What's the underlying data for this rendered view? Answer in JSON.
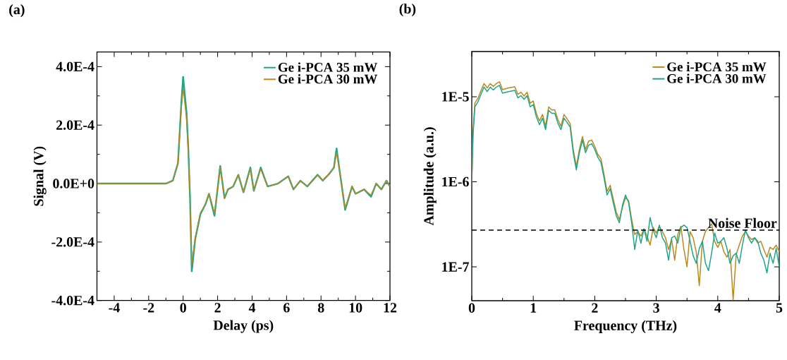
{
  "chart_data": [
    {
      "type": "line",
      "title": "(a)",
      "xlabel": "Delay (ps)",
      "ylabel": "Signal (V)",
      "xlim": [
        -5,
        12
      ],
      "ylim": [
        -0.0004,
        0.00045
      ],
      "xticks": [
        -4,
        -2,
        0,
        2,
        4,
        6,
        8,
        10,
        12
      ],
      "yticks": [
        {
          "value": -0.0004,
          "label": "-4.0E-4"
        },
        {
          "value": -0.0002,
          "label": "-2.0E-4"
        },
        {
          "value": 0,
          "label": "0.0E+0"
        },
        {
          "value": 0.0002,
          "label": "2.0E-4"
        },
        {
          "value": 0.0004,
          "label": "4.0E-4"
        }
      ],
      "legend": "top right",
      "grid": false,
      "line_style": "solid",
      "x": [
        -5,
        -4.5,
        -4,
        -3.5,
        -3,
        -2.5,
        -2,
        -1.5,
        -1,
        -0.6,
        -0.3,
        -0.1,
        0,
        0.2,
        0.3,
        0.4,
        0.5,
        0.7,
        1.0,
        1.3,
        1.5,
        1.82,
        2.15,
        2.4,
        2.6,
        2.9,
        3.2,
        3.5,
        3.9,
        4.1,
        4.5,
        4.9,
        5.5,
        6.1,
        6.4,
        6.8,
        7.2,
        7.5,
        7.8,
        8.1,
        8.5,
        8.75,
        8.9,
        9.1,
        9.4,
        9.8,
        10.0,
        10.5,
        10.9,
        11.2,
        11.5,
        11.8,
        12
      ],
      "series": [
        {
          "name": "Ge i-PCA 35 mW",
          "color": "#1fa58a",
          "values": [
            0,
            0,
            0,
            0,
            0,
            0,
            0,
            0,
            0,
            1e-05,
            7e-05,
            0.00028,
            0.000365,
            0.00024,
            0.00012,
            -5e-05,
            -0.0003,
            -0.00019,
            -0.000105,
            -7e-05,
            -3.5e-05,
            -0.00011,
            6e-05,
            -5e-05,
            -2e-05,
            -1e-05,
            3e-05,
            -3e-05,
            5.5e-05,
            -2.5e-05,
            5.5e-05,
            -1e-05,
            0,
            2.5e-05,
            -2e-05,
            1e-05,
            -1e-05,
            1e-05,
            3e-05,
            1e-05,
            3.5e-05,
            5.5e-05,
            0.00012,
            3.5e-05,
            -9e-05,
            -1e-05,
            -3.5e-05,
            -2e-05,
            -4.5e-05,
            0,
            -2e-05,
            1e-05,
            -1e-05
          ]
        },
        {
          "name": "Ge i-PCA 30 mW",
          "color": "#b8891c",
          "values": [
            0,
            0,
            0,
            0,
            0,
            0,
            0,
            0,
            0,
            1e-05,
            7e-05,
            0.00026,
            0.000325,
            0.00022,
            0.00011,
            -5e-05,
            -0.000275,
            -0.000185,
            -0.0001,
            -7e-05,
            -3.5e-05,
            -0.0001,
            5.5e-05,
            -5e-05,
            -2e-05,
            -1e-05,
            3e-05,
            -3e-05,
            5e-05,
            -2.5e-05,
            5e-05,
            -1e-05,
            0,
            2.5e-05,
            -2e-05,
            1e-05,
            -1e-05,
            1e-05,
            3e-05,
            1e-05,
            3.5e-05,
            5.5e-05,
            0.000105,
            3.5e-05,
            -8.5e-05,
            -1e-05,
            -3.5e-05,
            -2e-05,
            -4e-05,
            0,
            -2e-05,
            1e-05,
            -1e-05
          ]
        }
      ]
    },
    {
      "type": "line",
      "title": "(b)",
      "xlabel": "Frequency (THz)",
      "ylabel": "Amplitude (a.u.)",
      "log": "y",
      "xlim": [
        0,
        5
      ],
      "ylim": [
        4e-08,
        3.4e-05
      ],
      "xticks": [
        0,
        1,
        2,
        3,
        4,
        5
      ],
      "yticks": [
        {
          "value": 1e-07,
          "label": "1E-7"
        },
        {
          "value": 1e-06,
          "label": "1E-6"
        },
        {
          "value": 1e-05,
          "label": "1E-5"
        }
      ],
      "legend": "top right",
      "grid": false,
      "line_style": "solid",
      "ref_lines": [
        {
          "axis": "y",
          "value": 2.7e-07,
          "label": "Noise Floor",
          "color": "#000000",
          "line_style": "dashed"
        }
      ],
      "x": [
        0,
        0.02,
        0.05,
        0.1,
        0.15,
        0.2,
        0.25,
        0.3,
        0.35,
        0.4,
        0.45,
        0.5,
        0.6,
        0.7,
        0.75,
        0.8,
        0.85,
        0.9,
        0.95,
        1.0,
        1.05,
        1.1,
        1.15,
        1.2,
        1.25,
        1.3,
        1.35,
        1.4,
        1.45,
        1.5,
        1.55,
        1.6,
        1.65,
        1.7,
        1.75,
        1.8,
        1.85,
        1.9,
        1.95,
        2.0,
        2.05,
        2.1,
        2.15,
        2.2,
        2.25,
        2.3,
        2.35,
        2.4,
        2.45,
        2.5,
        2.55,
        2.6,
        2.65,
        2.7,
        2.75,
        2.8,
        2.85,
        2.9,
        2.95,
        3.0,
        3.05,
        3.1,
        3.15,
        3.2,
        3.25,
        3.3,
        3.35,
        3.4,
        3.45,
        3.5,
        3.55,
        3.6,
        3.65,
        3.7,
        3.75,
        3.8,
        3.85,
        3.9,
        3.95,
        4.0,
        4.05,
        4.1,
        4.15,
        4.2,
        4.25,
        4.3,
        4.35,
        4.4,
        4.45,
        4.5,
        4.55,
        4.6,
        4.65,
        4.7,
        4.75,
        4.8,
        4.85,
        4.9,
        4.95,
        5.0
      ],
      "series": [
        {
          "name": "Ge i-PCA 35 mW",
          "color": "#b8891c",
          "values": [
            1e-06,
            3.8e-06,
            8.4e-06,
            9.6e-06,
            1.18e-05,
            1.43e-05,
            1.27e-05,
            1.43e-05,
            1.32e-05,
            1.43e-05,
            1.5e-05,
            1.21e-05,
            1.27e-05,
            1.31e-05,
            1.07e-05,
            1.13e-05,
            1.02e-05,
            1.13e-05,
            8.4e-06,
            8.9e-06,
            6.4e-06,
            5.2e-06,
            6.2e-06,
            4.5e-06,
            7.6e-06,
            7e-06,
            7e-06,
            5.4e-06,
            4.5e-06,
            6.2e-06,
            5.5e-06,
            4.8e-06,
            2.4e-06,
            1.52e-06,
            2.4e-06,
            3.4e-06,
            2.4e-06,
            3e-06,
            3.1e-06,
            2.6e-06,
            2.1e-06,
            1.87e-06,
            1.23e-06,
            7.7e-07,
            9.1e-07,
            6.3e-07,
            4.4e-07,
            3.6e-07,
            5e-07,
            6.5e-07,
            6e-07,
            3.6e-07,
            2.4e-07,
            2.6e-07,
            2.3e-07,
            2.8e-07,
            2.3e-07,
            1.8e-07,
            2.9e-07,
            2.5e-07,
            3e-07,
            2.6e-07,
            2.2e-07,
            1.6e-07,
            2.1e-07,
            1.2e-07,
            2.4e-07,
            3e-07,
            1.6e-07,
            1e-07,
            2.6e-07,
            2.2e-07,
            1.5e-07,
            6e-08,
            2e-07,
            2.6e-07,
            2.9e-07,
            3.2e-07,
            2e-07,
            1.7e-07,
            2e-07,
            1.5e-07,
            1.3e-07,
            1.6e-07,
            4.1e-08,
            1.4e-07,
            1.8e-07,
            2.3e-07,
            2.6e-07,
            2.3e-07,
            2.1e-07,
            2.2e-07,
            1.9e-07,
            2e-07,
            1.6e-07,
            1.3e-07,
            1.7e-07,
            1.6e-07,
            1.8e-07,
            1.5e-07
          ]
        },
        {
          "name": "Ge i-PCA 30 mW",
          "color": "#1fa58a",
          "values": [
            1e-06,
            3.5e-06,
            7.6e-06,
            8.7e-06,
            1.07e-05,
            1.3e-05,
            1.15e-05,
            1.3e-05,
            1.2e-05,
            1.3e-05,
            1.36e-05,
            1.1e-05,
            1.15e-05,
            1.19e-05,
            9.7e-06,
            1.03e-05,
            9.3e-06,
            1.03e-05,
            7.6e-06,
            8.1e-06,
            5.8e-06,
            4.7e-06,
            5.6e-06,
            4.1e-06,
            6.9e-06,
            6.4e-06,
            6.4e-06,
            4.9e-06,
            4.1e-06,
            5.6e-06,
            5e-06,
            4.4e-06,
            2.2e-06,
            1.38e-06,
            2.2e-06,
            3.1e-06,
            2.2e-06,
            2.7e-06,
            2.8e-06,
            2.4e-06,
            1.94e-06,
            1.7e-06,
            1.12e-06,
            7e-07,
            8.3e-07,
            5.7e-07,
            4e-07,
            3.3e-07,
            5.3e-07,
            7e-07,
            5.7e-07,
            3.3e-07,
            1.6e-07,
            2.7e-07,
            1.9e-07,
            2.8e-07,
            2e-07,
            3.8e-07,
            2.7e-07,
            2.2e-07,
            3.1e-07,
            2.2e-07,
            1.9e-07,
            1.2e-07,
            2.2e-07,
            2.3e-07,
            1.9e-07,
            2.9e-07,
            3.1e-07,
            2.9e-07,
            2e-07,
            1.35e-07,
            1.1e-07,
            1.65e-07,
            2e-07,
            1.1e-07,
            9e-08,
            1.45e-07,
            2.5e-07,
            1.9e-07,
            2e-07,
            2.2e-07,
            1.65e-07,
            1.1e-07,
            1.35e-07,
            1.45e-07,
            1.1e-07,
            1.8e-07,
            2.7e-07,
            2.2e-07,
            1.9e-07,
            2.2e-07,
            2e-07,
            1.45e-07,
            1.2e-07,
            8.5e-08,
            1.45e-07,
            1.1e-07,
            1.65e-07,
            1e-07
          ]
        }
      ]
    }
  ]
}
